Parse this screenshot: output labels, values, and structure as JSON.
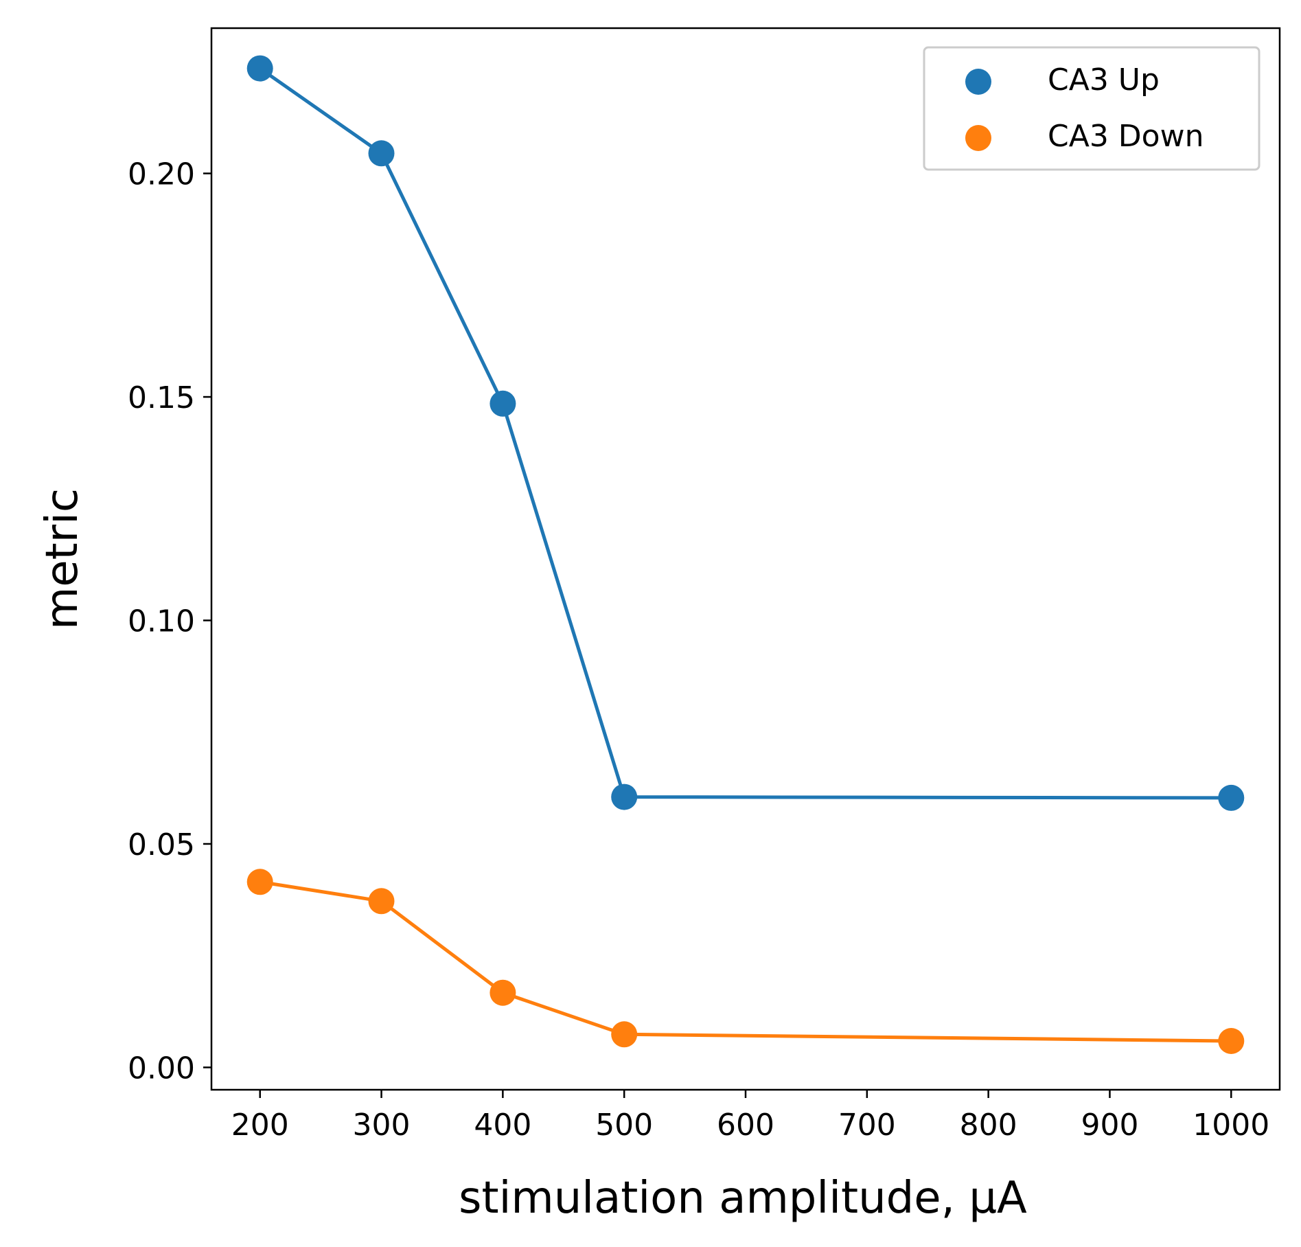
{
  "chart_data": {
    "type": "line",
    "title": "",
    "xlabel": "stimulation amplitude, μA",
    "ylabel": "metric",
    "x": [
      200,
      300,
      400,
      500,
      1000
    ],
    "series": [
      {
        "name": "CA3 Up",
        "color": "#1f77b4",
        "values": [
          0.2235,
          0.2045,
          0.1485,
          0.0605,
          0.0603
        ]
      },
      {
        "name": "CA3 Down",
        "color": "#ff7f0e",
        "values": [
          0.0415,
          0.0372,
          0.0167,
          0.0074,
          0.0059
        ]
      }
    ],
    "xlim": [
      160,
      1040
    ],
    "ylim": [
      -0.005,
      0.2325
    ],
    "xticks": [
      200,
      300,
      400,
      500,
      600,
      700,
      800,
      900,
      1000
    ],
    "xtick_labels": [
      "200",
      "300",
      "400",
      "500",
      "600",
      "700",
      "800",
      "900",
      "1000"
    ],
    "yticks": [
      0.0,
      0.05,
      0.1,
      0.15,
      0.2
    ],
    "ytick_labels": [
      "0.00",
      "0.05",
      "0.10",
      "0.15",
      "0.20"
    ],
    "grid": false,
    "legend_position": "top-right"
  }
}
